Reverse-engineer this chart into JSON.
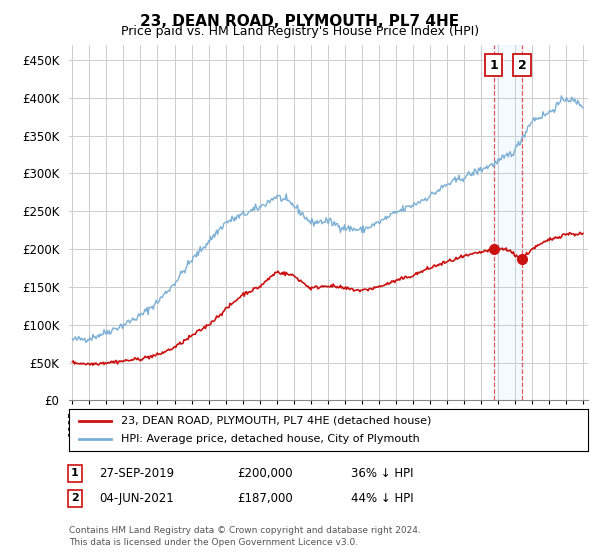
{
  "title": "23, DEAN ROAD, PLYMOUTH, PL7 4HE",
  "subtitle": "Price paid vs. HM Land Registry's House Price Index (HPI)",
  "ytick_values": [
    0,
    50000,
    100000,
    150000,
    200000,
    250000,
    300000,
    350000,
    400000,
    450000
  ],
  "ylim": [
    0,
    470000
  ],
  "xlim_start": 1994.8,
  "xlim_end": 2025.3,
  "hpi_color": "#7bafd4",
  "price_color": "#cc1111",
  "marker1_x": 2019.75,
  "marker1_y": 200000,
  "marker2_x": 2021.42,
  "marker2_y": 187000,
  "legend_label1": "23, DEAN ROAD, PLYMOUTH, PL7 4HE (detached house)",
  "legend_label2": "HPI: Average price, detached house, City of Plymouth",
  "row1_num": "1",
  "row1_date": "27-SEP-2019",
  "row1_price": "£200,000",
  "row1_pct": "36% ↓ HPI",
  "row2_num": "2",
  "row2_date": "04-JUN-2021",
  "row2_price": "£187,000",
  "row2_pct": "44% ↓ HPI",
  "footer": "Contains HM Land Registry data © Crown copyright and database right 2024.\nThis data is licensed under the Open Government Licence v3.0.",
  "background_color": "#ffffff",
  "grid_color": "#cccccc",
  "hpi_keypoints_x": [
    1995,
    1996,
    1997,
    1998,
    1999,
    2000,
    2001,
    2002,
    2003,
    2004,
    2005,
    2006,
    2007,
    2008,
    2009,
    2010,
    2011,
    2012,
    2013,
    2014,
    2015,
    2016,
    2017,
    2018,
    2019,
    2020,
    2021,
    2022,
    2023,
    2024,
    2025
  ],
  "hpi_keypoints_y": [
    80000,
    82000,
    90000,
    100000,
    112000,
    130000,
    155000,
    185000,
    210000,
    235000,
    245000,
    255000,
    270000,
    258000,
    235000,
    237000,
    228000,
    225000,
    235000,
    248000,
    258000,
    270000,
    285000,
    295000,
    305000,
    315000,
    330000,
    370000,
    380000,
    400000,
    390000
  ],
  "price_keypoints_x": [
    1995,
    1996,
    1997,
    1998,
    1999,
    2000,
    2001,
    2002,
    2003,
    2004,
    2005,
    2006,
    2007,
    2008,
    2009,
    2010,
    2011,
    2012,
    2013,
    2014,
    2015,
    2016,
    2017,
    2018,
    2019.75,
    2020.5,
    2021.42,
    2022,
    2023,
    2024,
    2025
  ],
  "price_keypoints_y": [
    50000,
    48000,
    50000,
    52000,
    55000,
    60000,
    70000,
    85000,
    100000,
    120000,
    140000,
    150000,
    170000,
    165000,
    148000,
    152000,
    148000,
    145000,
    150000,
    158000,
    165000,
    175000,
    183000,
    190000,
    200000,
    200000,
    187000,
    200000,
    212000,
    220000,
    220000
  ]
}
